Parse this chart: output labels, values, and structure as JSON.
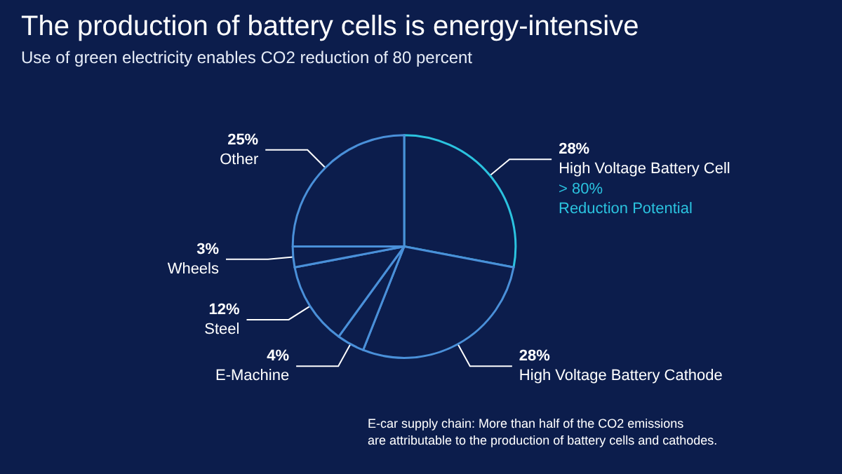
{
  "chart_data": {
    "type": "pie",
    "title": "The production of battery cells is energy-intensive",
    "subtitle": "Use of green electricity enables CO2 reduction of 80 percent",
    "categories": [
      "High Voltage Battery Cell",
      "High Voltage Battery Cathode",
      "E-Machine",
      "Steel",
      "Wheels",
      "Other"
    ],
    "values": [
      28,
      28,
      4,
      12,
      3,
      25
    ],
    "value_labels": [
      "28%",
      "28%",
      "4%",
      "12%",
      "3%",
      "25%"
    ],
    "colors": [
      "#2bc3df",
      "#4a90d9",
      "#4a90d9",
      "#4a90d9",
      "#4a90d9",
      "#4a90d9"
    ],
    "annotations": [
      "> 80%\nReduction Potential",
      "E-car supply chain: More than half of the CO2 emissions\nare attributable to the production of battery cells and cathodes."
    ],
    "legend": false
  }
}
